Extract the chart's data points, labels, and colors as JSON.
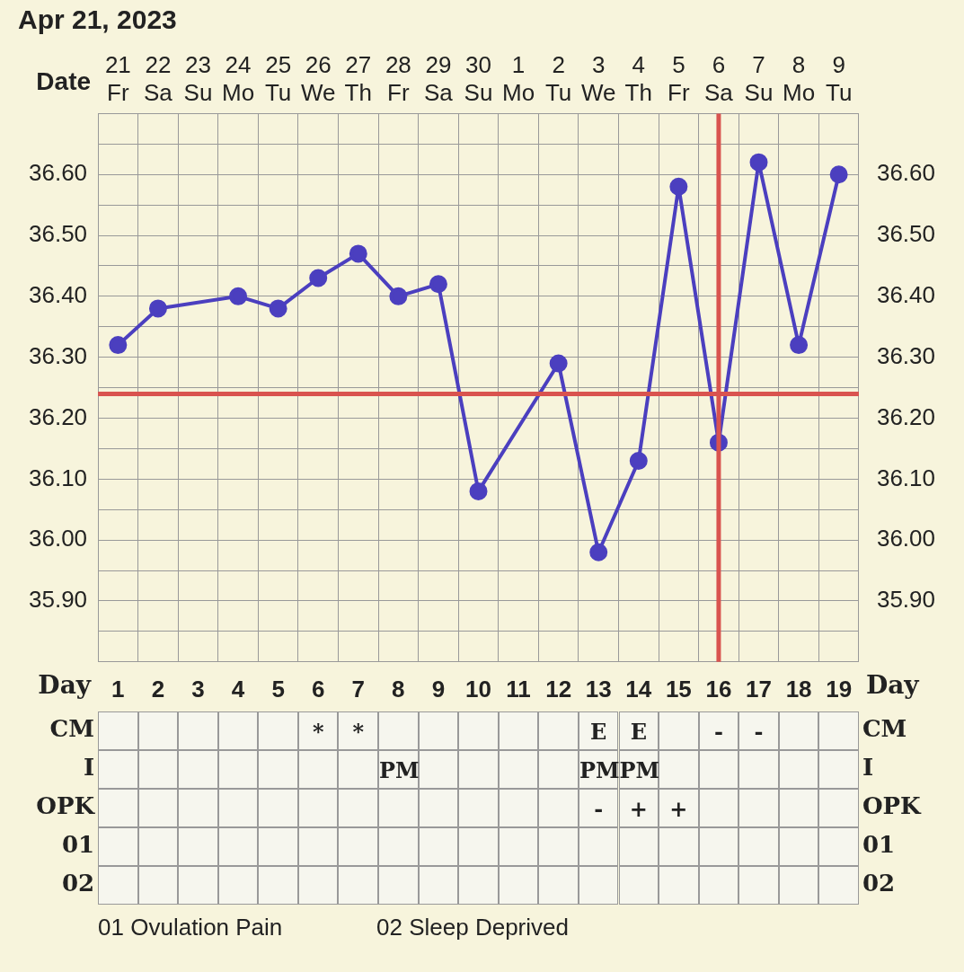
{
  "chart_data": [
    {
      "type": "line",
      "title": "Apr 21, 2023",
      "xlabel": "Date",
      "categories": [
        "21 Fr",
        "22 Sa",
        "23 Su",
        "24 Mo",
        "25 Tu",
        "26 We",
        "27 Th",
        "28 Fr",
        "29 Sa",
        "30 Su",
        "1 Mo",
        "2 Tu",
        "3 We",
        "4 Th",
        "5 Fr",
        "6 Sa",
        "7 Su",
        "8 Mo",
        "9 Tu"
      ],
      "series": [
        {
          "color": "#4b3fbf",
          "values": [
            36.32,
            36.38,
            null,
            36.4,
            36.38,
            36.43,
            36.47,
            36.4,
            36.42,
            36.08,
            null,
            36.29,
            35.98,
            36.13,
            36.58,
            36.16,
            36.62,
            36.32,
            36.6
          ]
        }
      ],
      "ylim": [
        35.8,
        36.7
      ],
      "yticks": [
        {
          "value": 35.85,
          "label": null
        },
        {
          "value": 35.9,
          "label": "35.90"
        },
        {
          "value": 35.95,
          "label": null
        },
        {
          "value": 36.0,
          "label": "36.00"
        },
        {
          "value": 36.05,
          "label": null
        },
        {
          "value": 36.1,
          "label": "36.10"
        },
        {
          "value": 36.15,
          "label": null
        },
        {
          "value": 36.2,
          "label": "36.20"
        },
        {
          "value": 36.25,
          "label": null
        },
        {
          "value": 36.3,
          "label": "36.30"
        },
        {
          "value": 36.35,
          "label": null
        },
        {
          "value": 36.4,
          "label": "36.40"
        },
        {
          "value": 36.45,
          "label": null
        },
        {
          "value": 36.5,
          "label": "36.50"
        },
        {
          "value": 36.55,
          "label": null
        },
        {
          "value": 36.6,
          "label": "36.60"
        },
        {
          "value": 36.65,
          "label": null
        }
      ],
      "y2lim": [
        35.8,
        36.7
      ],
      "y2ticks": [
        {
          "value": 35.85,
          "label": null
        },
        {
          "value": 35.9,
          "label": "35.90"
        },
        {
          "value": 35.95,
          "label": null
        },
        {
          "value": 36.0,
          "label": "36.00"
        },
        {
          "value": 36.05,
          "label": null
        },
        {
          "value": 36.1,
          "label": "36.10"
        },
        {
          "value": 36.15,
          "label": null
        },
        {
          "value": 36.2,
          "label": "36.20"
        },
        {
          "value": 36.25,
          "label": null
        },
        {
          "value": 36.3,
          "label": "36.30"
        },
        {
          "value": 36.35,
          "label": null
        },
        {
          "value": 36.4,
          "label": "36.40"
        },
        {
          "value": 36.45,
          "label": null
        },
        {
          "value": 36.5,
          "label": "36.50"
        },
        {
          "value": 36.55,
          "label": null
        },
        {
          "value": 36.6,
          "label": "36.60"
        },
        {
          "value": 36.65,
          "label": null
        }
      ],
      "x2label": "Day",
      "x2lim": [
        0.5,
        19.5
      ],
      "x2ticks": [
        1,
        2,
        3,
        4,
        5,
        6,
        7,
        8,
        9,
        10,
        11,
        12,
        13,
        14,
        15,
        16,
        17,
        18,
        19
      ],
      "ref_lines": [
        {
          "axis": "y",
          "value": 36.24,
          "color": "#d9534f"
        },
        {
          "axis": "x",
          "value": "6 Sa",
          "color": "#d9534f"
        }
      ],
      "grid": true,
      "marker": "circle",
      "line_style": "solid",
      "legend": false
    },
    {
      "type": "heatmap",
      "categories": [
        null,
        null,
        null,
        null,
        null,
        null,
        null,
        null,
        null,
        null,
        null,
        null,
        null,
        null,
        null,
        null,
        null,
        null,
        null
      ],
      "y_categories": [
        "CM",
        "I",
        "OPK",
        "01",
        "02"
      ],
      "y2_categories": [
        "CM",
        "I",
        "OPK",
        "01",
        "02"
      ],
      "cells": [
        [
          null,
          null,
          null,
          null,
          null,
          null,
          null,
          null,
          null,
          null,
          null,
          null,
          null,
          null,
          null,
          null,
          null,
          null,
          null
        ],
        [
          null,
          null,
          null,
          null,
          null,
          null,
          null,
          null,
          null,
          null,
          null,
          null,
          null,
          null,
          null,
          null,
          null,
          null,
          null
        ],
        [
          null,
          null,
          null,
          null,
          null,
          null,
          null,
          null,
          null,
          null,
          null,
          null,
          null,
          null,
          null,
          null,
          null,
          null,
          null
        ],
        [
          null,
          null,
          null,
          null,
          null,
          null,
          null,
          null,
          null,
          null,
          null,
          null,
          null,
          null,
          null,
          null,
          null,
          null,
          null
        ],
        [
          null,
          null,
          null,
          null,
          null,
          null,
          null,
          null,
          null,
          null,
          null,
          null,
          null,
          null,
          null,
          null,
          null,
          null,
          null
        ]
      ],
      "cell_labels": [
        [
          null,
          null,
          null,
          null,
          null,
          "*",
          "*",
          null,
          null,
          null,
          null,
          null,
          "E",
          "E",
          null,
          "-",
          "-",
          null,
          null
        ],
        [
          null,
          null,
          null,
          null,
          null,
          null,
          null,
          "PM",
          null,
          null,
          null,
          null,
          "PM",
          "PM",
          null,
          null,
          null,
          null,
          null
        ],
        [
          null,
          null,
          null,
          null,
          null,
          null,
          null,
          null,
          null,
          null,
          null,
          null,
          "-",
          "+",
          "+",
          null,
          null,
          null,
          null
        ],
        [
          null,
          null,
          null,
          null,
          null,
          null,
          null,
          null,
          null,
          null,
          null,
          null,
          null,
          null,
          null,
          null,
          null,
          null,
          null
        ],
        [
          null,
          null,
          null,
          null,
          null,
          null,
          null,
          null,
          null,
          null,
          null,
          null,
          null,
          null,
          null,
          null,
          null,
          null,
          null
        ]
      ],
      "annotations": [
        "01 Ovulation Pain",
        "02 Sleep Deprived"
      ]
    }
  ]
}
